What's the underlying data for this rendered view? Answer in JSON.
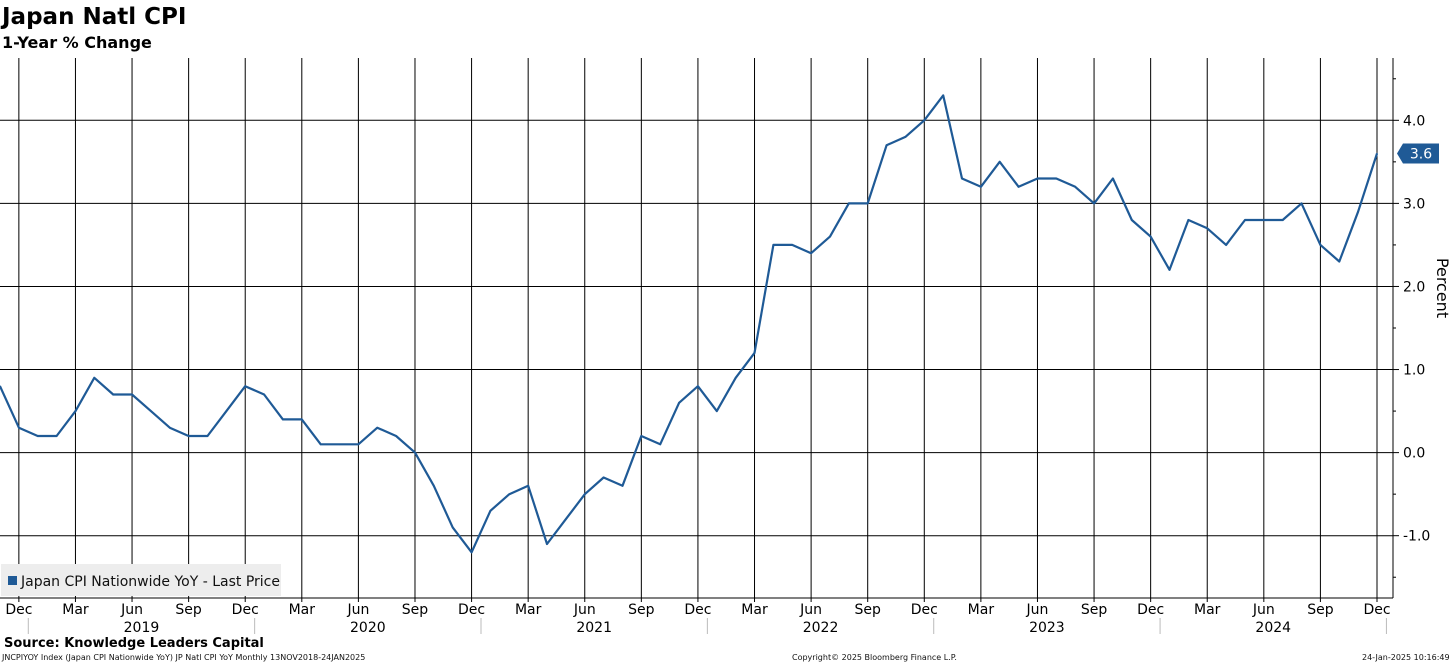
{
  "header": {
    "title": "Japan Natl CPI",
    "subtitle": "1-Year % Change"
  },
  "footer": {
    "source": "Source: Knowledge Leaders Capital",
    "ticker_line": "JNCPIYOY Index (Japan CPI Nationwide YoY) JP Natl CPI YoY  Monthly 13NOV2018-24JAN2025",
    "copyright": "Copyright© 2025 Bloomberg Finance L.P.",
    "timestamp": "24-Jan-2025 10:16:49"
  },
  "colors": {
    "series": "#1f5a96",
    "grid": "#000000",
    "legend_bg": "#ededed",
    "badge": "#1f5a96"
  },
  "chart_data": {
    "type": "line",
    "title": "Japan Natl CPI",
    "subtitle": "1-Year % Change",
    "ylabel": "Percent",
    "xlabel": "",
    "ylim": [
      -1.75,
      4.75
    ],
    "yticks": [
      -1.0,
      0.0,
      1.0,
      2.0,
      3.0,
      4.0
    ],
    "ytick_labels": [
      "-1.0",
      "0.0",
      "1.0",
      "2.0",
      "3.0",
      "4.0"
    ],
    "x_start": "2018-11",
    "x_end": "2025-01",
    "x_month_ticks": [
      "Dec",
      "Mar",
      "Jun",
      "Sep",
      "Dec",
      "Mar",
      "Jun",
      "Sep",
      "Dec",
      "Mar",
      "Jun",
      "Sep",
      "Dec",
      "Mar",
      "Jun",
      "Sep",
      "Dec",
      "Mar",
      "Jun",
      "Sep",
      "Dec",
      "Mar",
      "Jun",
      "Sep",
      "Dec"
    ],
    "x_year_labels": [
      "2019",
      "2020",
      "2021",
      "2022",
      "2023",
      "2024"
    ],
    "grid": true,
    "legend": {
      "placement": "bottom-left",
      "entries": [
        "Japan CPI Nationwide YoY - Last Price"
      ]
    },
    "last_value_label": "3.6",
    "series": [
      {
        "name": "Japan CPI Nationwide YoY - Last Price",
        "x": [
          "2018-11",
          "2018-12",
          "2019-01",
          "2019-02",
          "2019-03",
          "2019-04",
          "2019-05",
          "2019-06",
          "2019-07",
          "2019-08",
          "2019-09",
          "2019-10",
          "2019-11",
          "2019-12",
          "2020-01",
          "2020-02",
          "2020-03",
          "2020-04",
          "2020-05",
          "2020-06",
          "2020-07",
          "2020-08",
          "2020-09",
          "2020-10",
          "2020-11",
          "2020-12",
          "2021-01",
          "2021-02",
          "2021-03",
          "2021-04",
          "2021-05",
          "2021-06",
          "2021-07",
          "2021-08",
          "2021-09",
          "2021-10",
          "2021-11",
          "2021-12",
          "2022-01",
          "2022-02",
          "2022-03",
          "2022-04",
          "2022-05",
          "2022-06",
          "2022-07",
          "2022-08",
          "2022-09",
          "2022-10",
          "2022-11",
          "2022-12",
          "2023-01",
          "2023-02",
          "2023-03",
          "2023-04",
          "2023-05",
          "2023-06",
          "2023-07",
          "2023-08",
          "2023-09",
          "2023-10",
          "2023-11",
          "2023-12",
          "2024-01",
          "2024-02",
          "2024-03",
          "2024-04",
          "2024-05",
          "2024-06",
          "2024-07",
          "2024-08",
          "2024-09",
          "2024-10",
          "2024-11",
          "2024-12"
        ],
        "values": [
          0.8,
          0.3,
          0.2,
          0.2,
          0.5,
          0.9,
          0.7,
          0.7,
          0.5,
          0.3,
          0.2,
          0.2,
          0.5,
          0.8,
          0.7,
          0.4,
          0.4,
          0.1,
          0.1,
          0.1,
          0.3,
          0.2,
          0.0,
          -0.4,
          -0.9,
          -1.2,
          -0.7,
          -0.5,
          -0.4,
          -1.1,
          -0.8,
          -0.5,
          -0.3,
          -0.4,
          0.2,
          0.1,
          0.6,
          0.8,
          0.5,
          0.9,
          1.2,
          2.5,
          2.5,
          2.4,
          2.6,
          3.0,
          3.0,
          3.7,
          3.8,
          4.0,
          4.3,
          3.3,
          3.2,
          3.5,
          3.2,
          3.3,
          3.3,
          3.2,
          3.0,
          3.3,
          2.8,
          2.6,
          2.2,
          2.8,
          2.7,
          2.5,
          2.8,
          2.8,
          2.8,
          3.0,
          2.5,
          2.3,
          2.9,
          3.6
        ]
      }
    ]
  }
}
